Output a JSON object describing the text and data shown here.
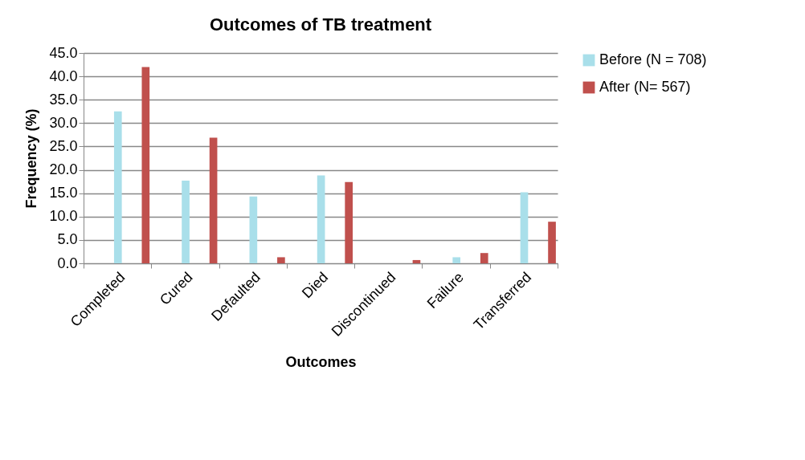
{
  "chart_data": {
    "type": "bar",
    "title": "Outcomes of TB treatment",
    "xlabel": "Outcomes",
    "ylabel": "Frequency (%)",
    "categories": [
      "Completed",
      "Cured",
      "Defaulted",
      "Died",
      "Discontinued",
      "Failure",
      "Transferred"
    ],
    "series": [
      {
        "name": "Before (N = 708)",
        "color": "#a9dfea",
        "values": [
          32.5,
          17.7,
          14.3,
          18.8,
          0,
          1.3,
          15.2
        ]
      },
      {
        "name": "After (N= 567)",
        "color": "#c0504d",
        "values": [
          42.0,
          26.9,
          1.3,
          17.4,
          0.7,
          2.2,
          8.9
        ]
      }
    ],
    "ylim": [
      0,
      45
    ],
    "yticks": [
      {
        "value": 0,
        "label": "0.0"
      },
      {
        "value": 5,
        "label": "5.0"
      },
      {
        "value": 10,
        "label": "10.0"
      },
      {
        "value": 15,
        "label": "15.0"
      },
      {
        "value": 20,
        "label": "20.0"
      },
      {
        "value": 25,
        "label": "25.0"
      },
      {
        "value": 30,
        "label": "30.0"
      },
      {
        "value": 35,
        "label": "35.0"
      },
      {
        "value": 40,
        "label": "40.0"
      },
      {
        "value": 45,
        "label": "45.0"
      }
    ],
    "grid": "y",
    "legend": "right"
  }
}
